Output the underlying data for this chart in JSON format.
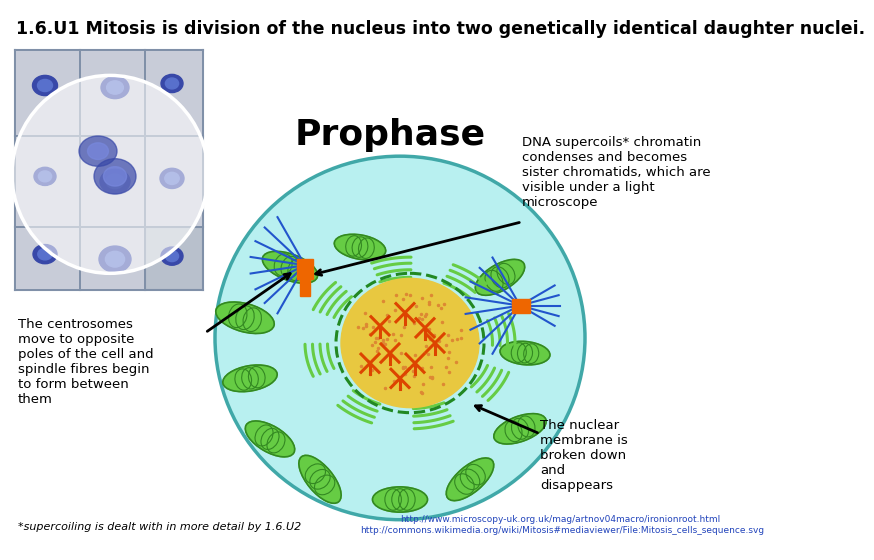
{
  "title": "1.6.U1 Mitosis is division of the nucleus into two genetically identical daughter nuclei.",
  "title_bg": "#c8d4e0",
  "title_fontsize": 12.5,
  "bg_color": "#ffffff",
  "prophase_label": "Prophase",
  "dna_text": "DNA supercoils* chromatin\ncondenses and becomes\nsister chromatids, which are\nvisible under a light\nmicroscope",
  "centrosome_text": "The centrosomes\nmove to opposite\npoles of the cell and\nspindle fibres begin\nto form between\nthem",
  "nuclear_text": "The nuclear\nmembrane is\nbroken down\nand\ndisappears",
  "footer_text1": "*supercoiling is dealt with in more detail by 1.6.U2",
  "footer_url1": "http://www.microscopy-uk.org.uk/mag/artnov04macro/ironionroot.html",
  "footer_url2": "http://commons.wikimedia.org/wiki/Mitosis#mediaviewer/File:Mitosis_cells_sequence.svg",
  "cell_fill": "#b8f0f0",
  "cell_border": "#40a8a8",
  "nucleus_fill": "#e8c840",
  "nucleus_border": "#c8a820",
  "nuc_env_color": "#228822",
  "mito_fill": "#66cc44",
  "mito_border": "#338822",
  "chromatin_color": "#dd4400",
  "centrosome_color": "#ee6600",
  "spindle_color": "#2255cc"
}
